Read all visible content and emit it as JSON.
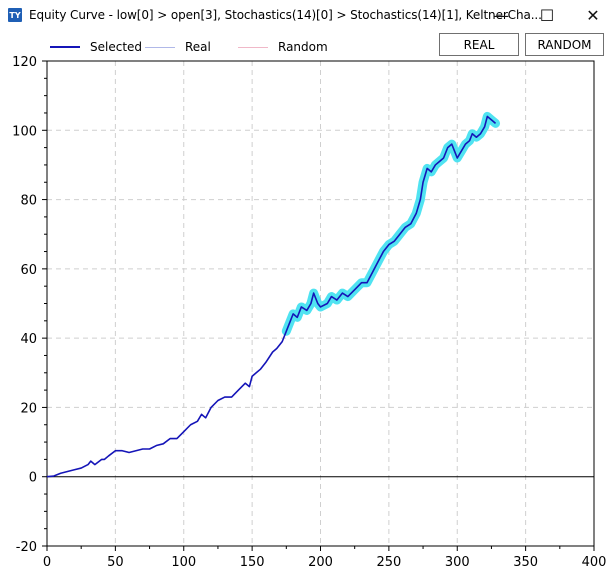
{
  "window": {
    "icon_text": "TY",
    "title": "Equity Curve - low[0] > open[3], Stochastics(14)[0] > Stochastics(14)[1], KeltnerCha...",
    "minimize_glyph": "—",
    "maximize_glyph": "☐",
    "close_glyph": "✕"
  },
  "toolbar": {
    "real_label": "REAL",
    "random_label": "RANDOM"
  },
  "legend": [
    {
      "label": "Selected",
      "color": "#1515b8"
    },
    {
      "label": "Real",
      "color": "#b0b8e8"
    },
    {
      "label": "Random",
      "color": "#f0b8c8"
    }
  ],
  "chart_data": {
    "type": "line",
    "xlim": [
      0,
      400
    ],
    "ylim": [
      -20,
      120
    ],
    "x_ticks": [
      "0",
      "50",
      "100",
      "150",
      "200",
      "250",
      "300",
      "350",
      "400"
    ],
    "y_ticks": [
      "-20",
      "0",
      "20",
      "40",
      "60",
      "80",
      "100",
      "120"
    ],
    "grid": true,
    "legend_position": "top-left",
    "series": [
      {
        "name": "Selected",
        "color": "#1515b8",
        "points": [
          [
            0,
            0
          ],
          [
            5,
            0.2
          ],
          [
            10,
            1
          ],
          [
            15,
            1.5
          ],
          [
            20,
            2
          ],
          [
            25,
            2.5
          ],
          [
            30,
            3.5
          ],
          [
            32,
            4.5
          ],
          [
            35,
            3.5
          ],
          [
            40,
            5
          ],
          [
            42,
            5
          ],
          [
            45,
            6
          ],
          [
            50,
            7.5
          ],
          [
            55,
            7.5
          ],
          [
            60,
            7
          ],
          [
            65,
            7.5
          ],
          [
            70,
            8
          ],
          [
            75,
            8
          ],
          [
            80,
            9
          ],
          [
            85,
            9.5
          ],
          [
            90,
            11
          ],
          [
            95,
            11
          ],
          [
            100,
            13
          ],
          [
            105,
            15
          ],
          [
            110,
            16
          ],
          [
            113,
            18
          ],
          [
            116,
            17
          ],
          [
            120,
            20
          ],
          [
            125,
            22
          ],
          [
            130,
            23
          ],
          [
            135,
            23
          ],
          [
            140,
            25
          ],
          [
            145,
            27
          ],
          [
            148,
            26
          ],
          [
            150,
            29
          ],
          [
            153,
            30
          ],
          [
            156,
            31
          ],
          [
            160,
            33
          ],
          [
            165,
            36
          ],
          [
            168,
            37
          ],
          [
            172,
            39
          ],
          [
            175,
            42
          ],
          [
            178,
            45
          ],
          [
            180,
            47
          ],
          [
            183,
            46
          ],
          [
            186,
            49
          ],
          [
            190,
            48
          ],
          [
            193,
            50
          ],
          [
            195,
            53
          ],
          [
            198,
            50
          ],
          [
            200,
            49
          ],
          [
            205,
            50
          ],
          [
            208,
            52
          ],
          [
            212,
            51
          ],
          [
            216,
            53
          ],
          [
            220,
            52
          ],
          [
            225,
            54
          ],
          [
            230,
            56
          ],
          [
            234,
            56
          ],
          [
            238,
            59
          ],
          [
            242,
            62
          ],
          [
            246,
            65
          ],
          [
            250,
            67
          ],
          [
            254,
            68
          ],
          [
            258,
            70
          ],
          [
            262,
            72
          ],
          [
            266,
            73
          ],
          [
            270,
            76
          ],
          [
            273,
            80
          ],
          [
            275,
            85
          ],
          [
            278,
            89
          ],
          [
            281,
            88
          ],
          [
            284,
            90
          ],
          [
            287,
            91
          ],
          [
            290,
            92
          ],
          [
            293,
            95
          ],
          [
            296,
            96
          ],
          [
            298,
            94
          ],
          [
            300,
            92
          ],
          [
            303,
            94
          ],
          [
            306,
            96
          ],
          [
            309,
            97
          ],
          [
            311,
            99
          ],
          [
            314,
            98
          ],
          [
            317,
            99
          ],
          [
            320,
            101
          ],
          [
            322,
            104
          ],
          [
            325,
            103
          ],
          [
            328,
            102
          ]
        ]
      }
    ],
    "highlight_from_x": 175,
    "highlight_color": "#3de0f0"
  }
}
